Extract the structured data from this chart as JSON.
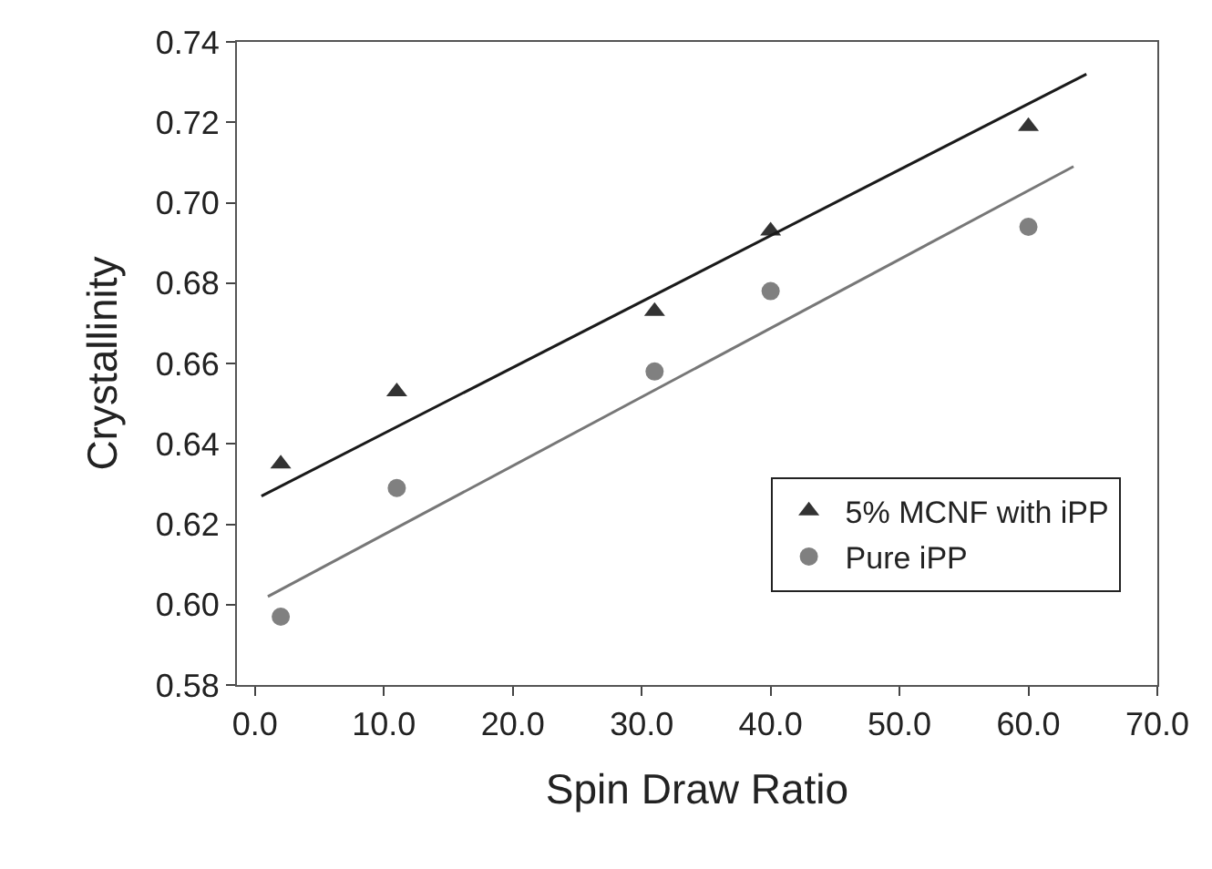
{
  "chart_data": {
    "type": "scatter",
    "xlabel": "Spin Draw Ratio",
    "ylabel": "Crystallinity",
    "xlim": [
      -1.4,
      70
    ],
    "ylim": [
      0.58,
      0.74
    ],
    "xticks": [
      {
        "value": 0,
        "label": "0.0"
      },
      {
        "value": 10,
        "label": "10.0"
      },
      {
        "value": 20,
        "label": "20.0"
      },
      {
        "value": 30,
        "label": "30.0"
      },
      {
        "value": 40,
        "label": "40.0"
      },
      {
        "value": 50,
        "label": "50.0"
      },
      {
        "value": 60,
        "label": "60.0"
      },
      {
        "value": 70,
        "label": "70.0"
      }
    ],
    "yticks": [
      0.58,
      {
        "value": 0.6,
        "label": "0.60"
      },
      0.62,
      0.64,
      0.66,
      0.68,
      {
        "value": 0.7,
        "label": "0.70"
      },
      0.72,
      0.74
    ],
    "grid": false,
    "legend": "bottom right",
    "series": [
      {
        "name": "5% MCNF with iPP",
        "marker": "triangle",
        "color": "#333333",
        "x": [
          2,
          11,
          31,
          40,
          60
        ],
        "values": [
          0.635,
          0.653,
          0.673,
          0.693,
          0.719
        ]
      },
      {
        "name": "Pure iPP",
        "marker": "circle",
        "color": "#808080",
        "x": [
          2,
          11,
          31,
          40,
          60
        ],
        "values": [
          0.597,
          0.629,
          0.658,
          0.678,
          0.694
        ]
      },
      {
        "type": "line",
        "marker": "none",
        "color": "#1a1a1a",
        "x": [
          0.5,
          64.5
        ],
        "values": [
          0.627,
          0.732
        ]
      },
      {
        "type": "line",
        "marker": "none",
        "color": "#777777",
        "x": [
          1,
          63.5
        ],
        "values": [
          0.602,
          0.709
        ]
      }
    ]
  }
}
